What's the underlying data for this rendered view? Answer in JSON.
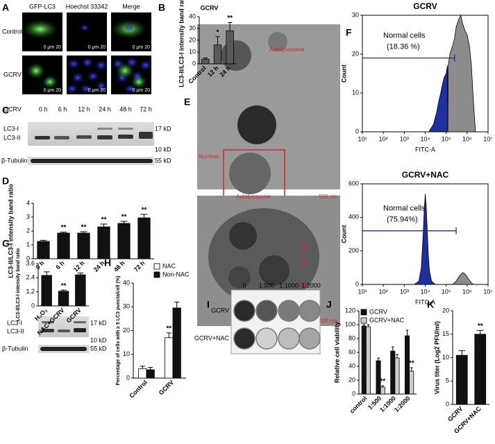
{
  "panels": [
    "A",
    "B",
    "C",
    "D",
    "E",
    "F",
    "G",
    "H",
    "I",
    "J",
    "K"
  ],
  "panel_a": {
    "columns": [
      "GFP-LC3",
      "Hoechst 33342",
      "Merge"
    ],
    "rows": [
      "Control",
      "GCRV"
    ],
    "scale_bar": "0 μm 20"
  },
  "panel_c": {
    "treatment": "GCRV",
    "times": [
      "0 h",
      "6 h",
      "12 h",
      "24 h",
      "48 h",
      "72 h"
    ],
    "bands": [
      "LC3-I",
      "LC3-II",
      "β-Tubulin"
    ],
    "markers": [
      "17 kD",
      "10 kD",
      "55 kD"
    ]
  },
  "panel_e": {
    "labels": [
      "Autolysosome",
      "Nucleus",
      "Autolysosome"
    ],
    "scale_bars": [
      "500 nm",
      "200 nm"
    ]
  },
  "panel_g_blot": {
    "bands": [
      "LC3-I",
      "LC3-II",
      "β-Tubulin"
    ],
    "markers": [
      "17 kD",
      "10 kD",
      "55 kD"
    ]
  },
  "panel_i": {
    "dilutions": [
      "0",
      "1:500",
      "1:1000",
      "1:2000"
    ],
    "rows": [
      "GCRV",
      "GCRV+NAC"
    ]
  },
  "chart_data": [
    {
      "type": "bar",
      "title": "GCRV",
      "y_label": "LC3-II/LC3-I intensity band ratio",
      "categories": [
        "Control",
        "12 h",
        "24 h"
      ],
      "series": [
        {
          "color": "#595959",
          "values": [
            4,
            16,
            28
          ],
          "errors": [
            1,
            7,
            7
          ],
          "significance": [
            null,
            "*",
            "**"
          ]
        }
      ],
      "ylim": [
        0,
        40
      ],
      "yticks": [
        0,
        10,
        20,
        30,
        40
      ]
    },
    {
      "type": "bar",
      "y_label": "LC3-II/LC3-I intensity band ratio",
      "categories": [
        "0 h",
        "6 h",
        "12 h",
        "24 h",
        "48 h",
        "72 h"
      ],
      "series": [
        {
          "color": "#111111",
          "values": [
            1.25,
            1.85,
            1.85,
            2.3,
            2.55,
            2.95
          ],
          "errors": [
            0.08,
            0.07,
            0.1,
            0.2,
            0.15,
            0.25
          ],
          "significance": [
            null,
            "**",
            "**",
            "**",
            "**",
            "**"
          ]
        }
      ],
      "ylim": [
        0,
        4
      ],
      "yticks": [
        0,
        1,
        2,
        3,
        4
      ]
    },
    {
      "type": "area",
      "title": "GCRV",
      "x_label": "FITC-A",
      "y_label": "Count",
      "xscale": "log",
      "xlim": [
        10,
        10000000
      ],
      "xticks": [
        {
          "value": 10,
          "label": "10¹"
        },
        {
          "value": 100,
          "label": "10²"
        },
        {
          "value": 1000,
          "label": "10³"
        },
        {
          "value": 10000,
          "label": "10⁴"
        },
        {
          "value": 100000,
          "label": "10⁵"
        },
        {
          "value": 1000000,
          "label": "10⁶"
        },
        {
          "value": 10000000,
          "label": "10⁷"
        }
      ],
      "ylim": [
        0,
        30
      ],
      "yticks": [
        0,
        10,
        20,
        30
      ],
      "series": [
        {
          "color": "#1f2fa0",
          "x": [
            15000,
            25000,
            35000,
            45000,
            55000,
            65000,
            80000,
            100000,
            115000,
            120000
          ],
          "values": [
            0,
            2,
            5,
            8,
            10,
            12,
            14,
            15,
            17,
            0
          ]
        },
        {
          "color": "#8c8c8c",
          "x": [
            120000,
            125000,
            150000,
            200000,
            250000,
            300000,
            400000,
            500000,
            600000,
            800000,
            1000000,
            1300000,
            1600000,
            2000000,
            2500000
          ],
          "values": [
            0,
            17,
            20,
            22,
            24,
            27,
            29,
            30,
            28,
            26,
            25,
            22,
            17,
            8,
            0
          ]
        }
      ],
      "gate": {
        "label": "Normal cells",
        "percent": "(18.36 %)",
        "y": 19,
        "x": [
          10,
          250000
        ]
      }
    },
    {
      "type": "area",
      "title": "GCRV+NAC",
      "x_label": "FITC-A",
      "y_label": "Count",
      "xscale": "log",
      "xlim": [
        10,
        10000000
      ],
      "xticks": [
        {
          "value": 10,
          "label": "10¹"
        },
        {
          "value": 100,
          "label": "10²"
        },
        {
          "value": 1000,
          "label": "10³"
        },
        {
          "value": 10000,
          "label": "10⁴"
        },
        {
          "value": 100000,
          "label": "10⁵"
        },
        {
          "value": 1000000,
          "label": "10⁶"
        },
        {
          "value": 10000000,
          "label": "10⁷"
        }
      ],
      "ylim": [
        0,
        600
      ],
      "yticks": [
        0,
        200,
        400,
        600
      ],
      "series": [
        {
          "color": "#1f2fa0",
          "x": [
            3000,
            5000,
            6500,
            8000,
            9000,
            10000,
            11000,
            12500,
            14000,
            16000,
            20000,
            30000
          ],
          "values": [
            0,
            20,
            100,
            300,
            450,
            540,
            480,
            320,
            180,
            80,
            20,
            0
          ]
        },
        {
          "color": "#8c8c8c",
          "x": [
            200000,
            300000,
            400000,
            500000,
            600000,
            700000,
            900000,
            1200000,
            1600000,
            2000000
          ],
          "values": [
            0,
            20,
            45,
            60,
            70,
            68,
            55,
            30,
            10,
            0
          ]
        }
      ],
      "gate": {
        "label": "Normal cells",
        "percent": "(75.94%)",
        "y": 320,
        "x": [
          10,
          300000
        ]
      }
    },
    {
      "type": "bar",
      "y_label": "LC3-II/LC3-I intensity band ratio",
      "categories": [
        "H₂O₂",
        "NAC+GCRV",
        "GCRV"
      ],
      "series": [
        {
          "color": "#111111",
          "values": [
            2.6,
            1.25,
            2.65
          ],
          "errors": [
            0.3,
            0.1,
            0.15
          ],
          "significance": [
            null,
            "**",
            null
          ]
        }
      ],
      "ylim": [
        0,
        3.6
      ],
      "yticks": [
        0,
        1.2,
        2.4,
        3.6
      ]
    },
    {
      "type": "bar",
      "y_label": "Percentage of cells with ≥ 5 LC3 puncta/cell (%)",
      "categories": [
        "Control",
        "GCRV"
      ],
      "series": [
        {
          "name": "NAC",
          "color": "#ffffff",
          "values": [
            4,
            17
          ],
          "errors": [
            1,
            2
          ],
          "significance": [
            null,
            "**"
          ]
        },
        {
          "name": "Non-NAC",
          "color": "#111111",
          "values": [
            3.5,
            29.5
          ],
          "errors": [
            1,
            2.5
          ],
          "significance": [
            null,
            null
          ]
        }
      ],
      "ylim": [
        0,
        40
      ],
      "yticks": [
        0,
        10,
        20,
        30,
        40
      ],
      "legend": "top-left"
    },
    {
      "type": "bar",
      "y_label": "Relative cell viability",
      "categories": [
        "control",
        "1:500",
        "1:1000",
        "1:2000"
      ],
      "series": [
        {
          "name": "GCRV",
          "color": "#111111",
          "values": [
            98,
            48,
            62,
            84
          ],
          "errors": [
            2,
            4,
            6,
            8
          ],
          "significance": [
            null,
            null,
            null,
            null
          ]
        },
        {
          "name": "GCRV+NAC",
          "color": "#cccccc",
          "values": [
            97,
            10,
            52,
            33
          ],
          "errors": [
            3,
            2,
            5,
            5
          ],
          "significance": [
            null,
            "**",
            null,
            "**"
          ]
        }
      ],
      "ylim": [
        0,
        120
      ],
      "yticks": [
        0,
        20,
        40,
        60,
        80,
        100,
        120
      ],
      "legend": "top-left"
    },
    {
      "type": "bar",
      "y_label": "Virus titer (Log2 PFU/ml)",
      "categories": [
        "GCRV",
        "GCRV+NAC"
      ],
      "series": [
        {
          "color": "#111111",
          "values": [
            10.5,
            15
          ],
          "errors": [
            1,
            0.8
          ],
          "significance": [
            null,
            "**"
          ]
        }
      ],
      "ylim": [
        0,
        20
      ],
      "yticks": [
        0,
        5,
        10,
        15,
        20
      ]
    }
  ]
}
